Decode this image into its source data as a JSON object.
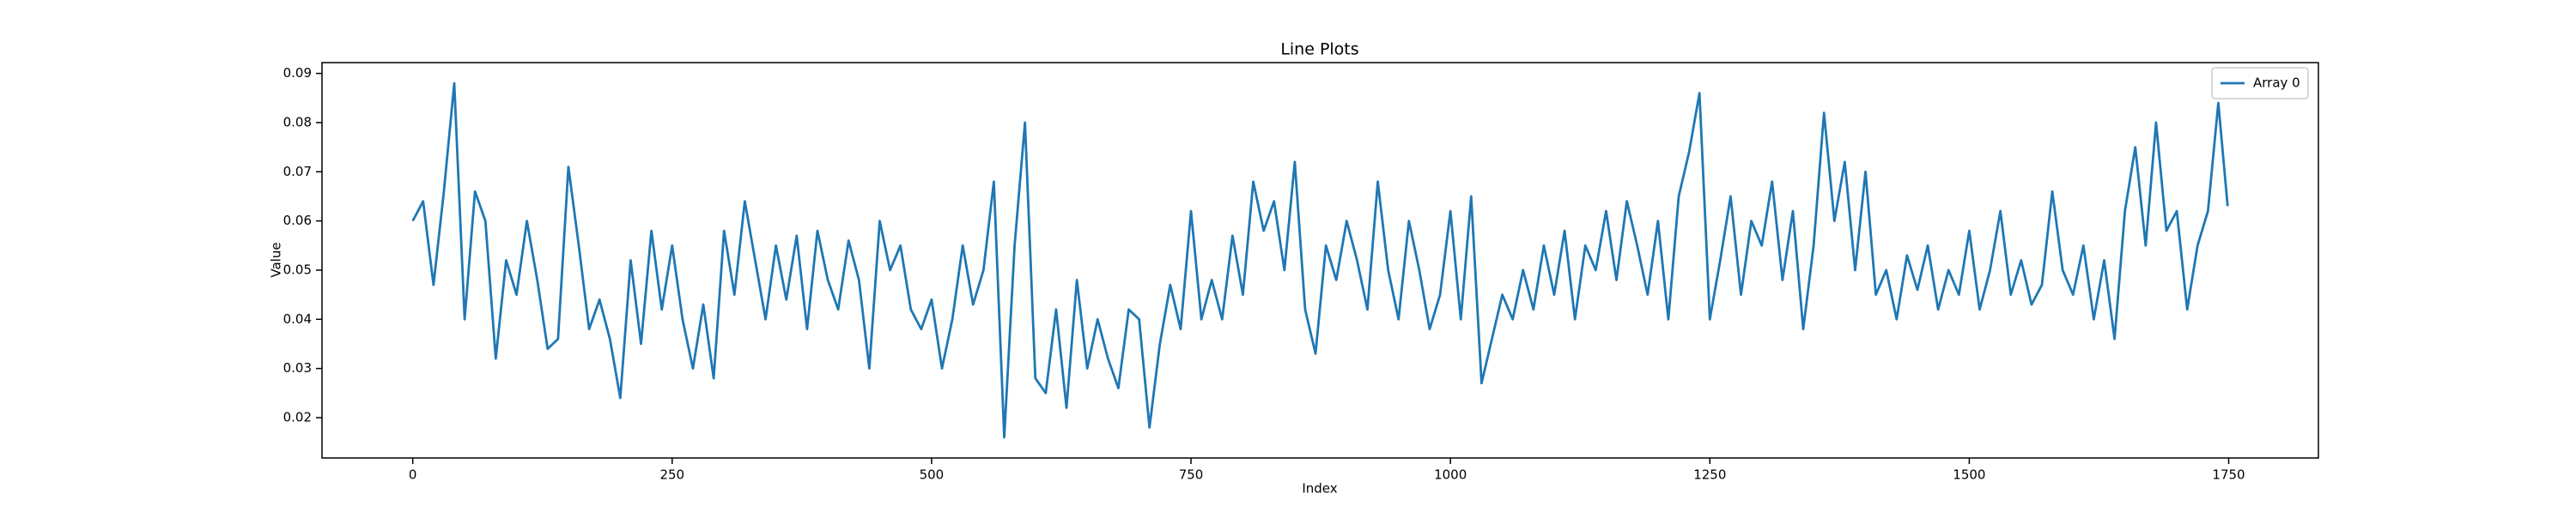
{
  "chart_data": {
    "type": "line",
    "title": "Line Plots",
    "x_label": "Index",
    "y_label": "Value",
    "xlim": [
      -87.45,
      1836.45
    ],
    "ylim": [
      0.0118,
      0.0922
    ],
    "xticks": [
      0,
      250,
      500,
      750,
      1000,
      1250,
      1500,
      1750
    ],
    "yticks": [
      0.02,
      0.03,
      0.04,
      0.05,
      0.06,
      0.07,
      0.08,
      0.09
    ],
    "grid": false,
    "legend": "upper right",
    "x": [
      0,
      10,
      20,
      30,
      40,
      50,
      60,
      70,
      80,
      90,
      100,
      110,
      120,
      130,
      140,
      150,
      160,
      170,
      180,
      190,
      200,
      210,
      220,
      230,
      240,
      250,
      260,
      270,
      280,
      290,
      300,
      310,
      320,
      330,
      340,
      350,
      360,
      370,
      380,
      390,
      400,
      410,
      420,
      430,
      440,
      450,
      460,
      470,
      480,
      490,
      500,
      510,
      520,
      530,
      540,
      550,
      560,
      570,
      580,
      590,
      600,
      610,
      620,
      630,
      640,
      650,
      660,
      670,
      680,
      690,
      700,
      710,
      720,
      730,
      740,
      750,
      760,
      770,
      780,
      790,
      800,
      810,
      820,
      830,
      840,
      850,
      860,
      870,
      880,
      890,
      900,
      910,
      920,
      930,
      940,
      950,
      960,
      970,
      980,
      990,
      1000,
      1010,
      1020,
      1030,
      1040,
      1050,
      1060,
      1070,
      1080,
      1090,
      1100,
      1110,
      1120,
      1130,
      1140,
      1150,
      1160,
      1170,
      1180,
      1190,
      1200,
      1210,
      1220,
      1230,
      1240,
      1250,
      1260,
      1270,
      1280,
      1290,
      1300,
      1310,
      1320,
      1330,
      1340,
      1350,
      1360,
      1370,
      1380,
      1390,
      1400,
      1410,
      1420,
      1430,
      1440,
      1450,
      1460,
      1470,
      1480,
      1490,
      1500,
      1510,
      1520,
      1530,
      1540,
      1550,
      1560,
      1570,
      1580,
      1590,
      1600,
      1610,
      1620,
      1630,
      1640,
      1650,
      1660,
      1670,
      1680,
      1690,
      1700,
      1710,
      1720,
      1730,
      1740,
      1749
    ],
    "series": [
      {
        "name": "Array 0",
        "color": "#1f77b4",
        "values": [
          0.06,
          0.064,
          0.047,
          0.066,
          0.088,
          0.04,
          0.066,
          0.06,
          0.032,
          0.052,
          0.045,
          0.06,
          0.048,
          0.034,
          0.036,
          0.071,
          0.055,
          0.038,
          0.044,
          0.036,
          0.024,
          0.052,
          0.035,
          0.058,
          0.042,
          0.055,
          0.04,
          0.03,
          0.043,
          0.028,
          0.058,
          0.045,
          0.064,
          0.052,
          0.04,
          0.055,
          0.044,
          0.057,
          0.038,
          0.058,
          0.048,
          0.042,
          0.056,
          0.048,
          0.03,
          0.06,
          0.05,
          0.055,
          0.042,
          0.038,
          0.044,
          0.03,
          0.04,
          0.055,
          0.043,
          0.05,
          0.068,
          0.016,
          0.055,
          0.08,
          0.028,
          0.025,
          0.042,
          0.022,
          0.048,
          0.03,
          0.04,
          0.032,
          0.026,
          0.042,
          0.04,
          0.018,
          0.035,
          0.047,
          0.038,
          0.062,
          0.04,
          0.048,
          0.04,
          0.057,
          0.045,
          0.068,
          0.058,
          0.064,
          0.05,
          0.072,
          0.042,
          0.033,
          0.055,
          0.048,
          0.06,
          0.052,
          0.042,
          0.068,
          0.05,
          0.04,
          0.06,
          0.05,
          0.038,
          0.045,
          0.062,
          0.04,
          0.065,
          0.027,
          0.036,
          0.045,
          0.04,
          0.05,
          0.042,
          0.055,
          0.045,
          0.058,
          0.04,
          0.055,
          0.05,
          0.062,
          0.048,
          0.064,
          0.055,
          0.045,
          0.06,
          0.04,
          0.065,
          0.074,
          0.086,
          0.04,
          0.052,
          0.065,
          0.045,
          0.06,
          0.055,
          0.068,
          0.048,
          0.062,
          0.038,
          0.055,
          0.082,
          0.06,
          0.072,
          0.05,
          0.07,
          0.045,
          0.05,
          0.04,
          0.053,
          0.046,
          0.055,
          0.042,
          0.05,
          0.045,
          0.058,
          0.042,
          0.05,
          0.062,
          0.045,
          0.052,
          0.043,
          0.047,
          0.066,
          0.05,
          0.045,
          0.055,
          0.04,
          0.052,
          0.036,
          0.062,
          0.075,
          0.055,
          0.08,
          0.058,
          0.062,
          0.042,
          0.055,
          0.062,
          0.084,
          0.063
        ]
      }
    ]
  }
}
